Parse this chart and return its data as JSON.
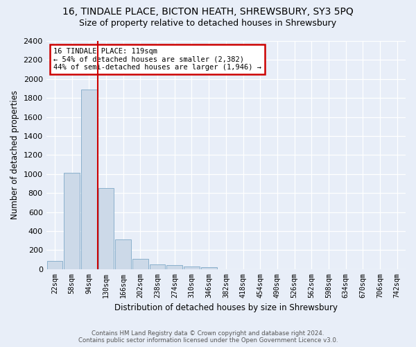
{
  "title": "16, TINDALE PLACE, BICTON HEATH, SHREWSBURY, SY3 5PQ",
  "subtitle": "Size of property relative to detached houses in Shrewsbury",
  "xlabel": "Distribution of detached houses by size in Shrewsbury",
  "ylabel": "Number of detached properties",
  "footer_line1": "Contains HM Land Registry data © Crown copyright and database right 2024.",
  "footer_line2": "Contains public sector information licensed under the Open Government Licence v3.0.",
  "bar_labels": [
    "22sqm",
    "58sqm",
    "94sqm",
    "130sqm",
    "166sqm",
    "202sqm",
    "238sqm",
    "274sqm",
    "310sqm",
    "346sqm",
    "382sqm",
    "418sqm",
    "454sqm",
    "490sqm",
    "526sqm",
    "562sqm",
    "598sqm",
    "634sqm",
    "670sqm",
    "706sqm",
    "742sqm"
  ],
  "bar_values": [
    85,
    1010,
    1890,
    855,
    315,
    110,
    50,
    45,
    30,
    20,
    0,
    0,
    0,
    0,
    0,
    0,
    0,
    0,
    0,
    0,
    0
  ],
  "bar_color": "#ccd9e8",
  "bar_edge_color": "#8ab0cc",
  "vline_color": "#cc0000",
  "annotation_line1": "16 TINDALE PLACE: 119sqm",
  "annotation_line2": "← 54% of detached houses are smaller (2,382)",
  "annotation_line3": "44% of semi-detached houses are larger (1,946) →",
  "annotation_box_color": "#ffffff",
  "annotation_box_edge": "#cc0000",
  "ylim": [
    0,
    2400
  ],
  "yticks": [
    0,
    200,
    400,
    600,
    800,
    1000,
    1200,
    1400,
    1600,
    1800,
    2000,
    2200,
    2400
  ],
  "bg_color": "#e8eef8",
  "plot_bg_color": "#e8eef8",
  "grid_color": "#ffffff",
  "title_fontsize": 10,
  "subtitle_fontsize": 9
}
